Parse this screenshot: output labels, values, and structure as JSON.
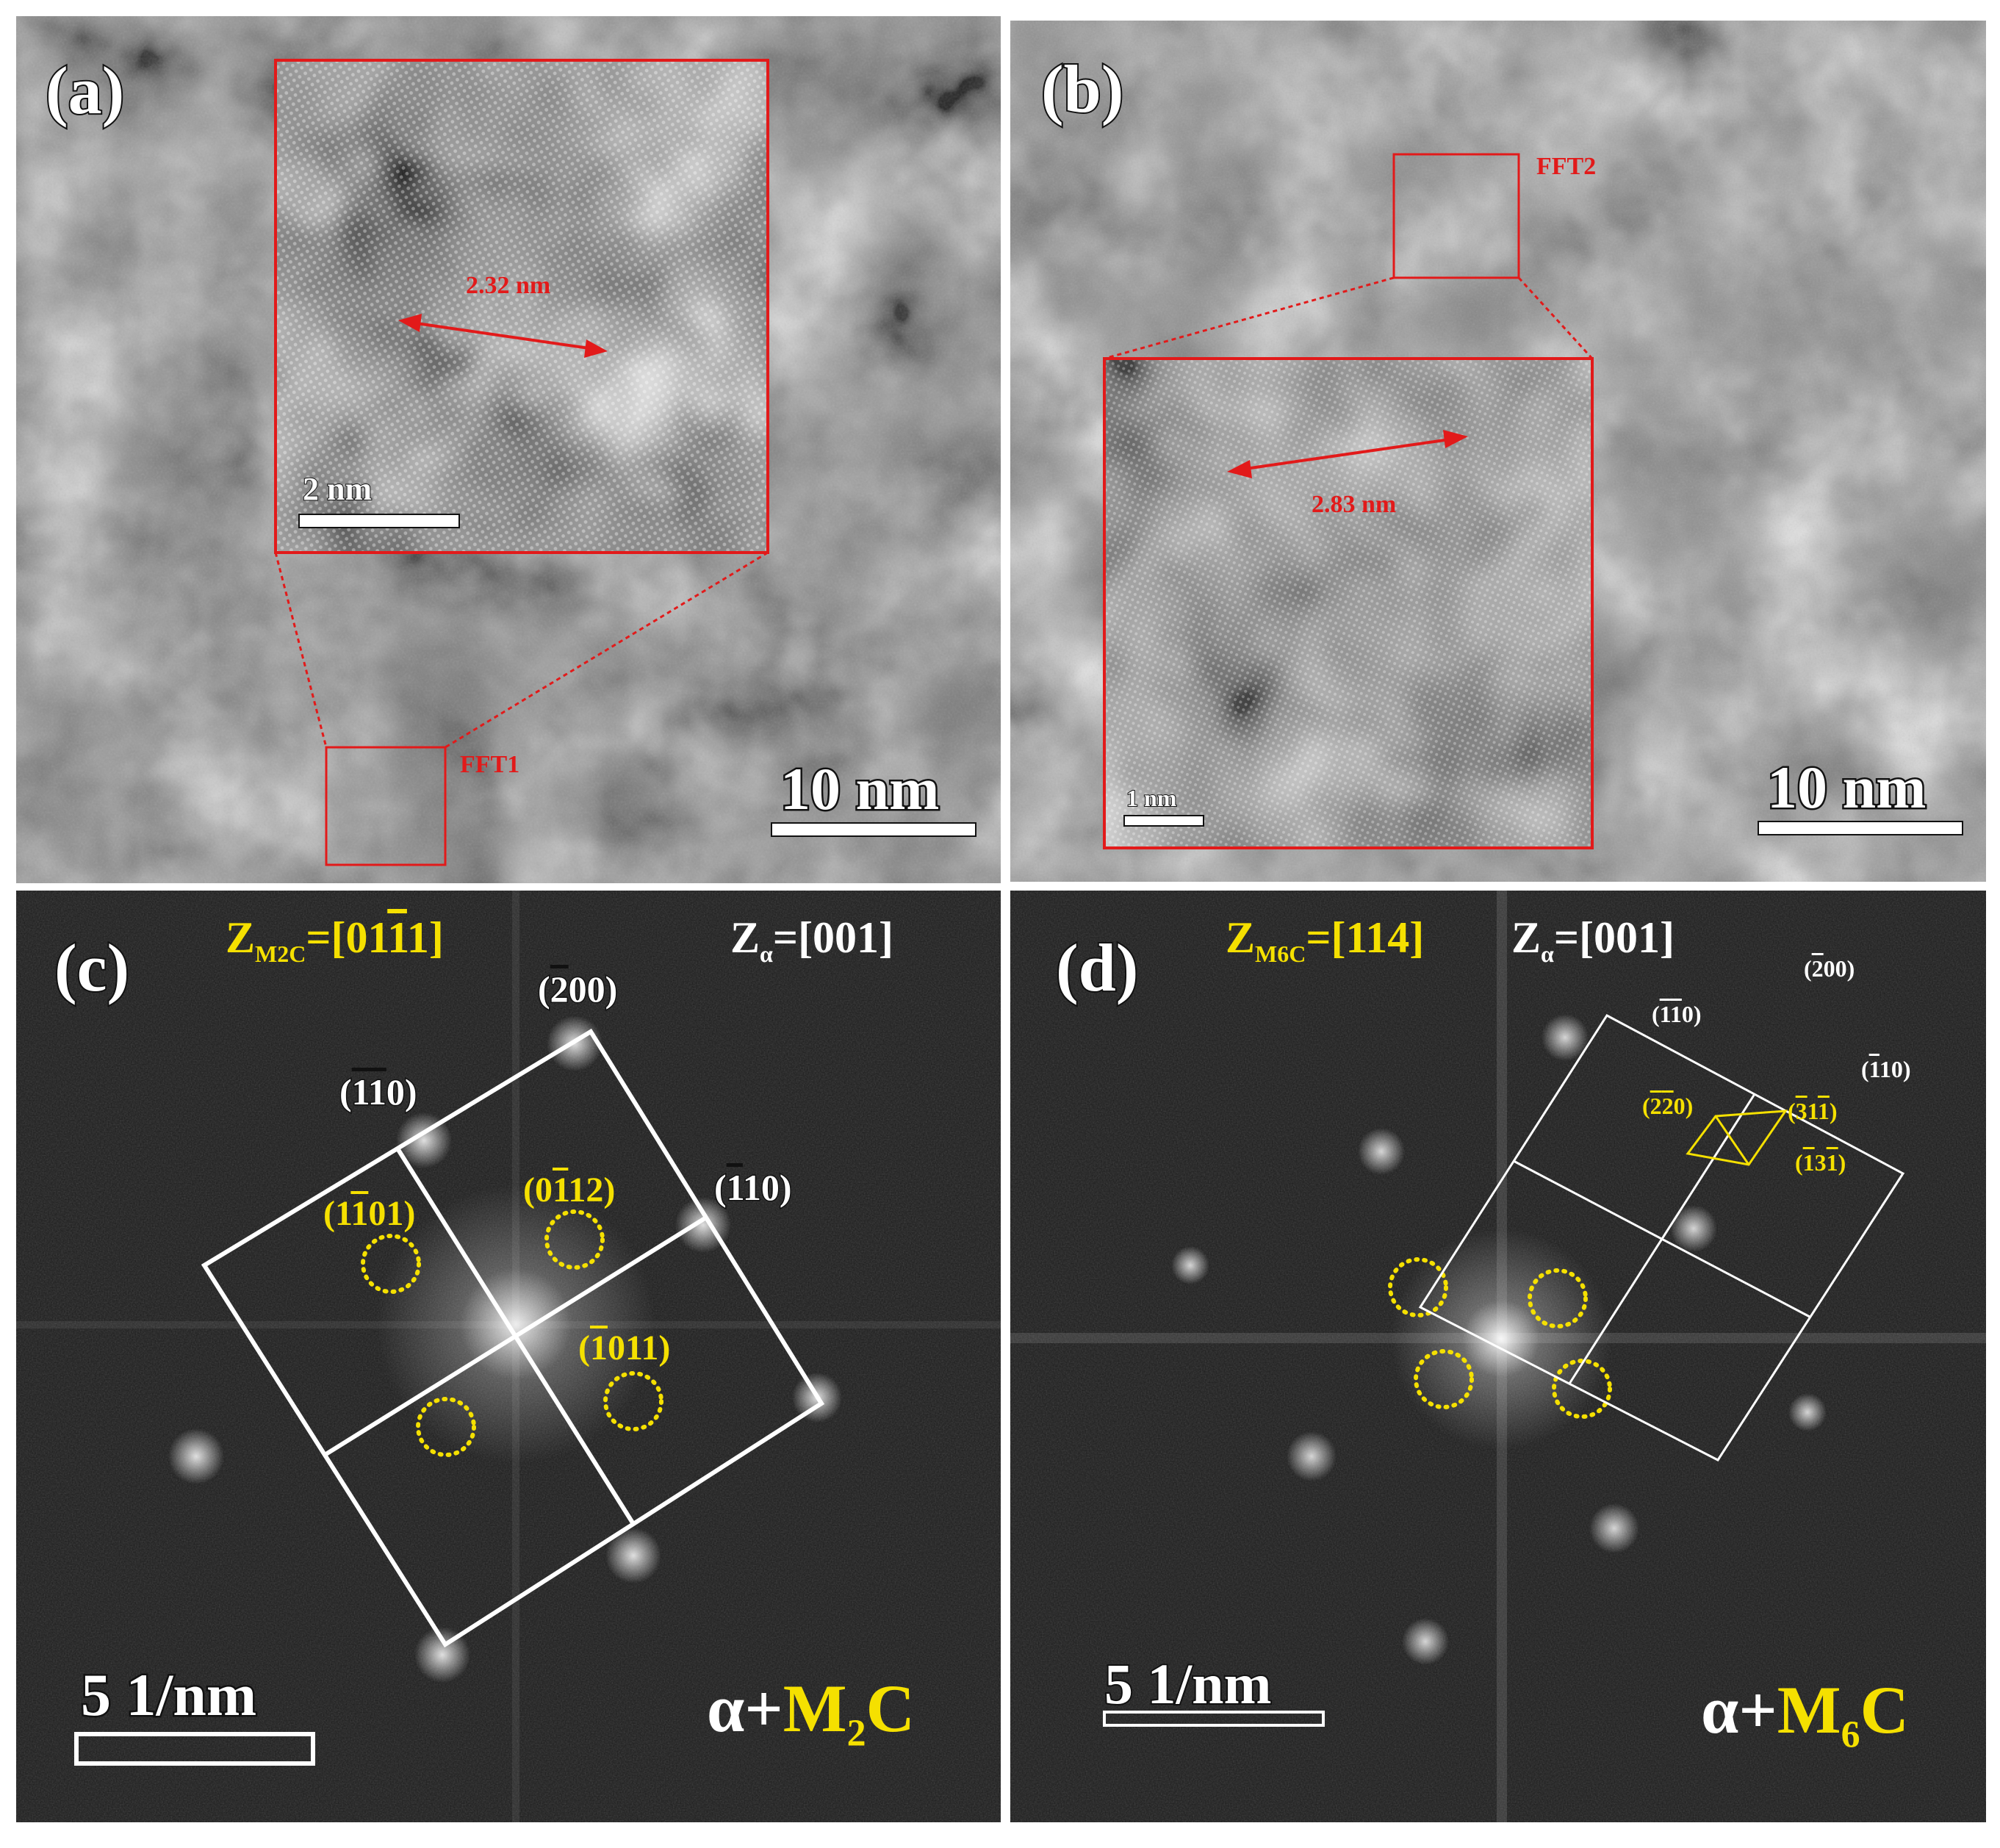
{
  "colors": {
    "red": "#e21a1a",
    "yellow": "#f5e000",
    "white": "#ffffff",
    "fft_background": "#1c1c1c"
  },
  "panel_a": {
    "label": "(a)",
    "distance": "2.32 nm",
    "inset_scale": "2 nm",
    "fft_box_label": "FFT1",
    "scale": "10 nm"
  },
  "panel_b": {
    "label": "(b)",
    "distance": "2.83 nm",
    "inset_scale": "1 nm",
    "fft_box_label": "FFT2",
    "scale": "10 nm"
  },
  "panel_c": {
    "label": "(c)",
    "zone_m2c": {
      "main": "Z",
      "sub": "M2C",
      "rest": "=[01",
      "bar": "1",
      "tail": "1]"
    },
    "zone_alpha": {
      "main": "Z",
      "sub": "α",
      "rest": "=[001]"
    },
    "white_spots": [
      {
        "open": "(",
        "bar": "2",
        "rest": "00)"
      },
      {
        "open": "(",
        "bar": "1",
        "bar2": "1",
        "rest": "0)"
      },
      {
        "open": "(",
        "bar": "1",
        "rest": "10)"
      }
    ],
    "yellow_spots": [
      {
        "open": "(1",
        "bar": "1",
        "rest": "01)"
      },
      {
        "open": "(0",
        "bar": "1",
        "rest": "12)"
      },
      {
        "open": "(",
        "bar": "1",
        "rest": "011)"
      }
    ],
    "scale": "5 1/nm",
    "phase": {
      "alpha": "α+",
      "m": "M",
      "sub": "2",
      "c": "C"
    }
  },
  "panel_d": {
    "label": "(d)",
    "zone_m6c": {
      "main": "Z",
      "sub": "M6C",
      "rest": "=[114]"
    },
    "zone_alpha": {
      "main": "Z",
      "sub": "α",
      "rest": "=[001]"
    },
    "white_spots": [
      {
        "open": "(",
        "bar": "2",
        "rest": "00)"
      },
      {
        "open": "(",
        "bar": "1",
        "bar2": "1",
        "rest": "0)"
      },
      {
        "open": "(",
        "bar": "1",
        "rest": "10)"
      }
    ],
    "yellow_spots": [
      {
        "open": "(",
        "bar": "2",
        "bar2": "2",
        "rest": "0)"
      },
      {
        "open": "(",
        "bar": "3",
        "mid": "1",
        "bar2": "1",
        "rest": ")"
      },
      {
        "open": "(",
        "bar": "1",
        "mid": "3",
        "bar2": "1",
        "rest": ")"
      }
    ],
    "scale": "5 1/nm",
    "phase": {
      "alpha": "α+",
      "m": "M",
      "sub": "6",
      "c": "C"
    }
  }
}
